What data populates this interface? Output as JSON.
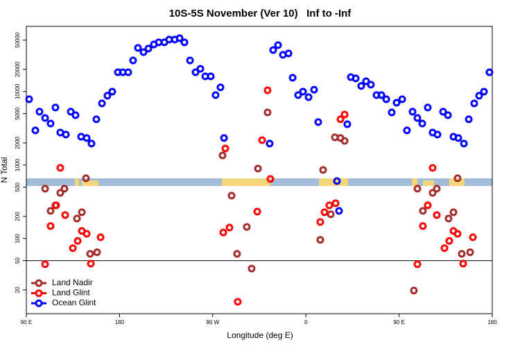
{
  "chart_data": {
    "type": "scatter",
    "title": "10S-5S November (Ver 10)   Inf to -Inf",
    "x_label": "Longitude (deg E)",
    "y_label": "N Total",
    "log_y": true,
    "xlim": [
      90,
      540
    ],
    "ylim": [
      9.5,
      77000
    ],
    "xticks": [
      {
        "value": 90,
        "label": "90 E"
      },
      {
        "value": 180,
        "label": "180"
      },
      {
        "value": 270,
        "label": "90 W"
      },
      {
        "value": 360,
        "label": "0"
      },
      {
        "value": 450,
        "label": "90 E"
      },
      {
        "value": 540,
        "label": "180"
      }
    ],
    "yticks": [
      20,
      50,
      100,
      200,
      500,
      1000,
      2000,
      5000,
      10000,
      20000,
      50000
    ],
    "hline": 50,
    "legend": "bottom-left",
    "series": [
      {
        "name": "Land Nadir",
        "color": "#a52a2a",
        "x": [
          108.1,
          113.4,
          118.1,
          122.8,
          126.8,
          138.9,
          143.6,
          147.6,
          151.6,
          158.3,
          279.5,
          288.2,
          293.5,
          302.9,
          307.6,
          313.7,
          323,
          373.9,
          376.6,
          384,
          388,
          393.4,
          397.4,
          464.3,
          467.7,
          473,
          477.7,
          482.4,
          486.4,
          497.8,
          502.5,
          506.5,
          510.5,
          518.6
        ],
        "values": [
          477,
          238,
          283,
          419,
          477,
          187,
          228,
          661,
          62,
          65,
          1350,
          384,
          62,
          144,
          39,
          895,
          5200,
          96,
          857,
          214,
          2380,
          2330,
          2130,
          19.6,
          477,
          238,
          283,
          419,
          477,
          187,
          228,
          661,
          62,
          65
        ]
      },
      {
        "name": "Land Glint",
        "color": "#ff0000",
        "x": [
          108.1,
          113.4,
          118.8,
          122.8,
          127.5,
          134.9,
          139.6,
          143.6,
          148.3,
          152.3,
          161.7,
          280.2,
          282.2,
          286.2,
          294.2,
          313,
          317.7,
          323,
          325.7,
          373.9,
          378,
          382.6,
          388.7,
          393.4,
          397.4,
          467.7,
          473,
          477.7,
          482.4,
          486.4,
          493.8,
          498.5,
          502.5,
          506.5,
          511.9,
          521.3
        ],
        "values": [
          44.7,
          148,
          283,
          915,
          209,
          74,
          93,
          127,
          116,
          45.6,
          104,
          121,
          1680,
          141,
          13.8,
          233,
          2180,
          10400,
          646,
          168,
          228,
          283,
          302,
          4190,
          4870,
          44.7,
          148,
          283,
          915,
          209,
          74,
          93,
          127,
          116,
          45.6,
          104
        ]
      },
      {
        "name": "Ocean Glint",
        "color": "#0000ff",
        "x": [
          92.7,
          98.7,
          102.7,
          108.1,
          113.4,
          118.1,
          122.8,
          128.2,
          132.9,
          137.5,
          142.9,
          148.3,
          152.9,
          157.6,
          163,
          168.3,
          173,
          178.4,
          183.1,
          188.4,
          193.1,
          197.8,
          203.2,
          207.9,
          213.2,
          217.9,
          223.3,
          227.9,
          233.3,
          238,
          242.7,
          248.1,
          253.4,
          258.1,
          262.8,
          268.1,
          272.8,
          277.5,
          280.9,
          325,
          328.4,
          333.1,
          337.8,
          343.2,
          347.2,
          352.5,
          357.2,
          362.6,
          367.9,
          371.9,
          390,
          392,
          400,
          403.4,
          408.1,
          413.4,
          418.1,
          422.8,
          428.2,
          432.9,
          437.6,
          442.9,
          447.6,
          453,
          457.6,
          463,
          467.7,
          472.4,
          477.7,
          482.4,
          487.1,
          492.5,
          497.2,
          502.5,
          507.2,
          512.6,
          517.3,
          522.6,
          527.3,
          532,
          537.3
        ],
        "values": [
          7850,
          2960,
          5320,
          4370,
          3670,
          6060,
          2770,
          2600,
          5320,
          4770,
          2430,
          2330,
          1960,
          4190,
          6900,
          8770,
          9980,
          18300,
          18300,
          18300,
          26500,
          39200,
          34400,
          38400,
          43700,
          46700,
          46700,
          50900,
          50900,
          53200,
          46700,
          26500,
          18300,
          20400,
          16100,
          16100,
          8950,
          11400,
          2330,
          1960,
          36700,
          42800,
          31600,
          33000,
          15400,
          8950,
          9980,
          8390,
          10600,
          3840,
          606,
          238,
          3590,
          15700,
          15100,
          11900,
          13800,
          12400,
          8950,
          8950,
          7850,
          5200,
          7050,
          7850,
          2960,
          5320,
          4370,
          3670,
          6060,
          2770,
          2600,
          5320,
          4770,
          2430,
          2330,
          1960,
          4190,
          6900,
          8770,
          9980,
          18300
        ]
      }
    ]
  }
}
